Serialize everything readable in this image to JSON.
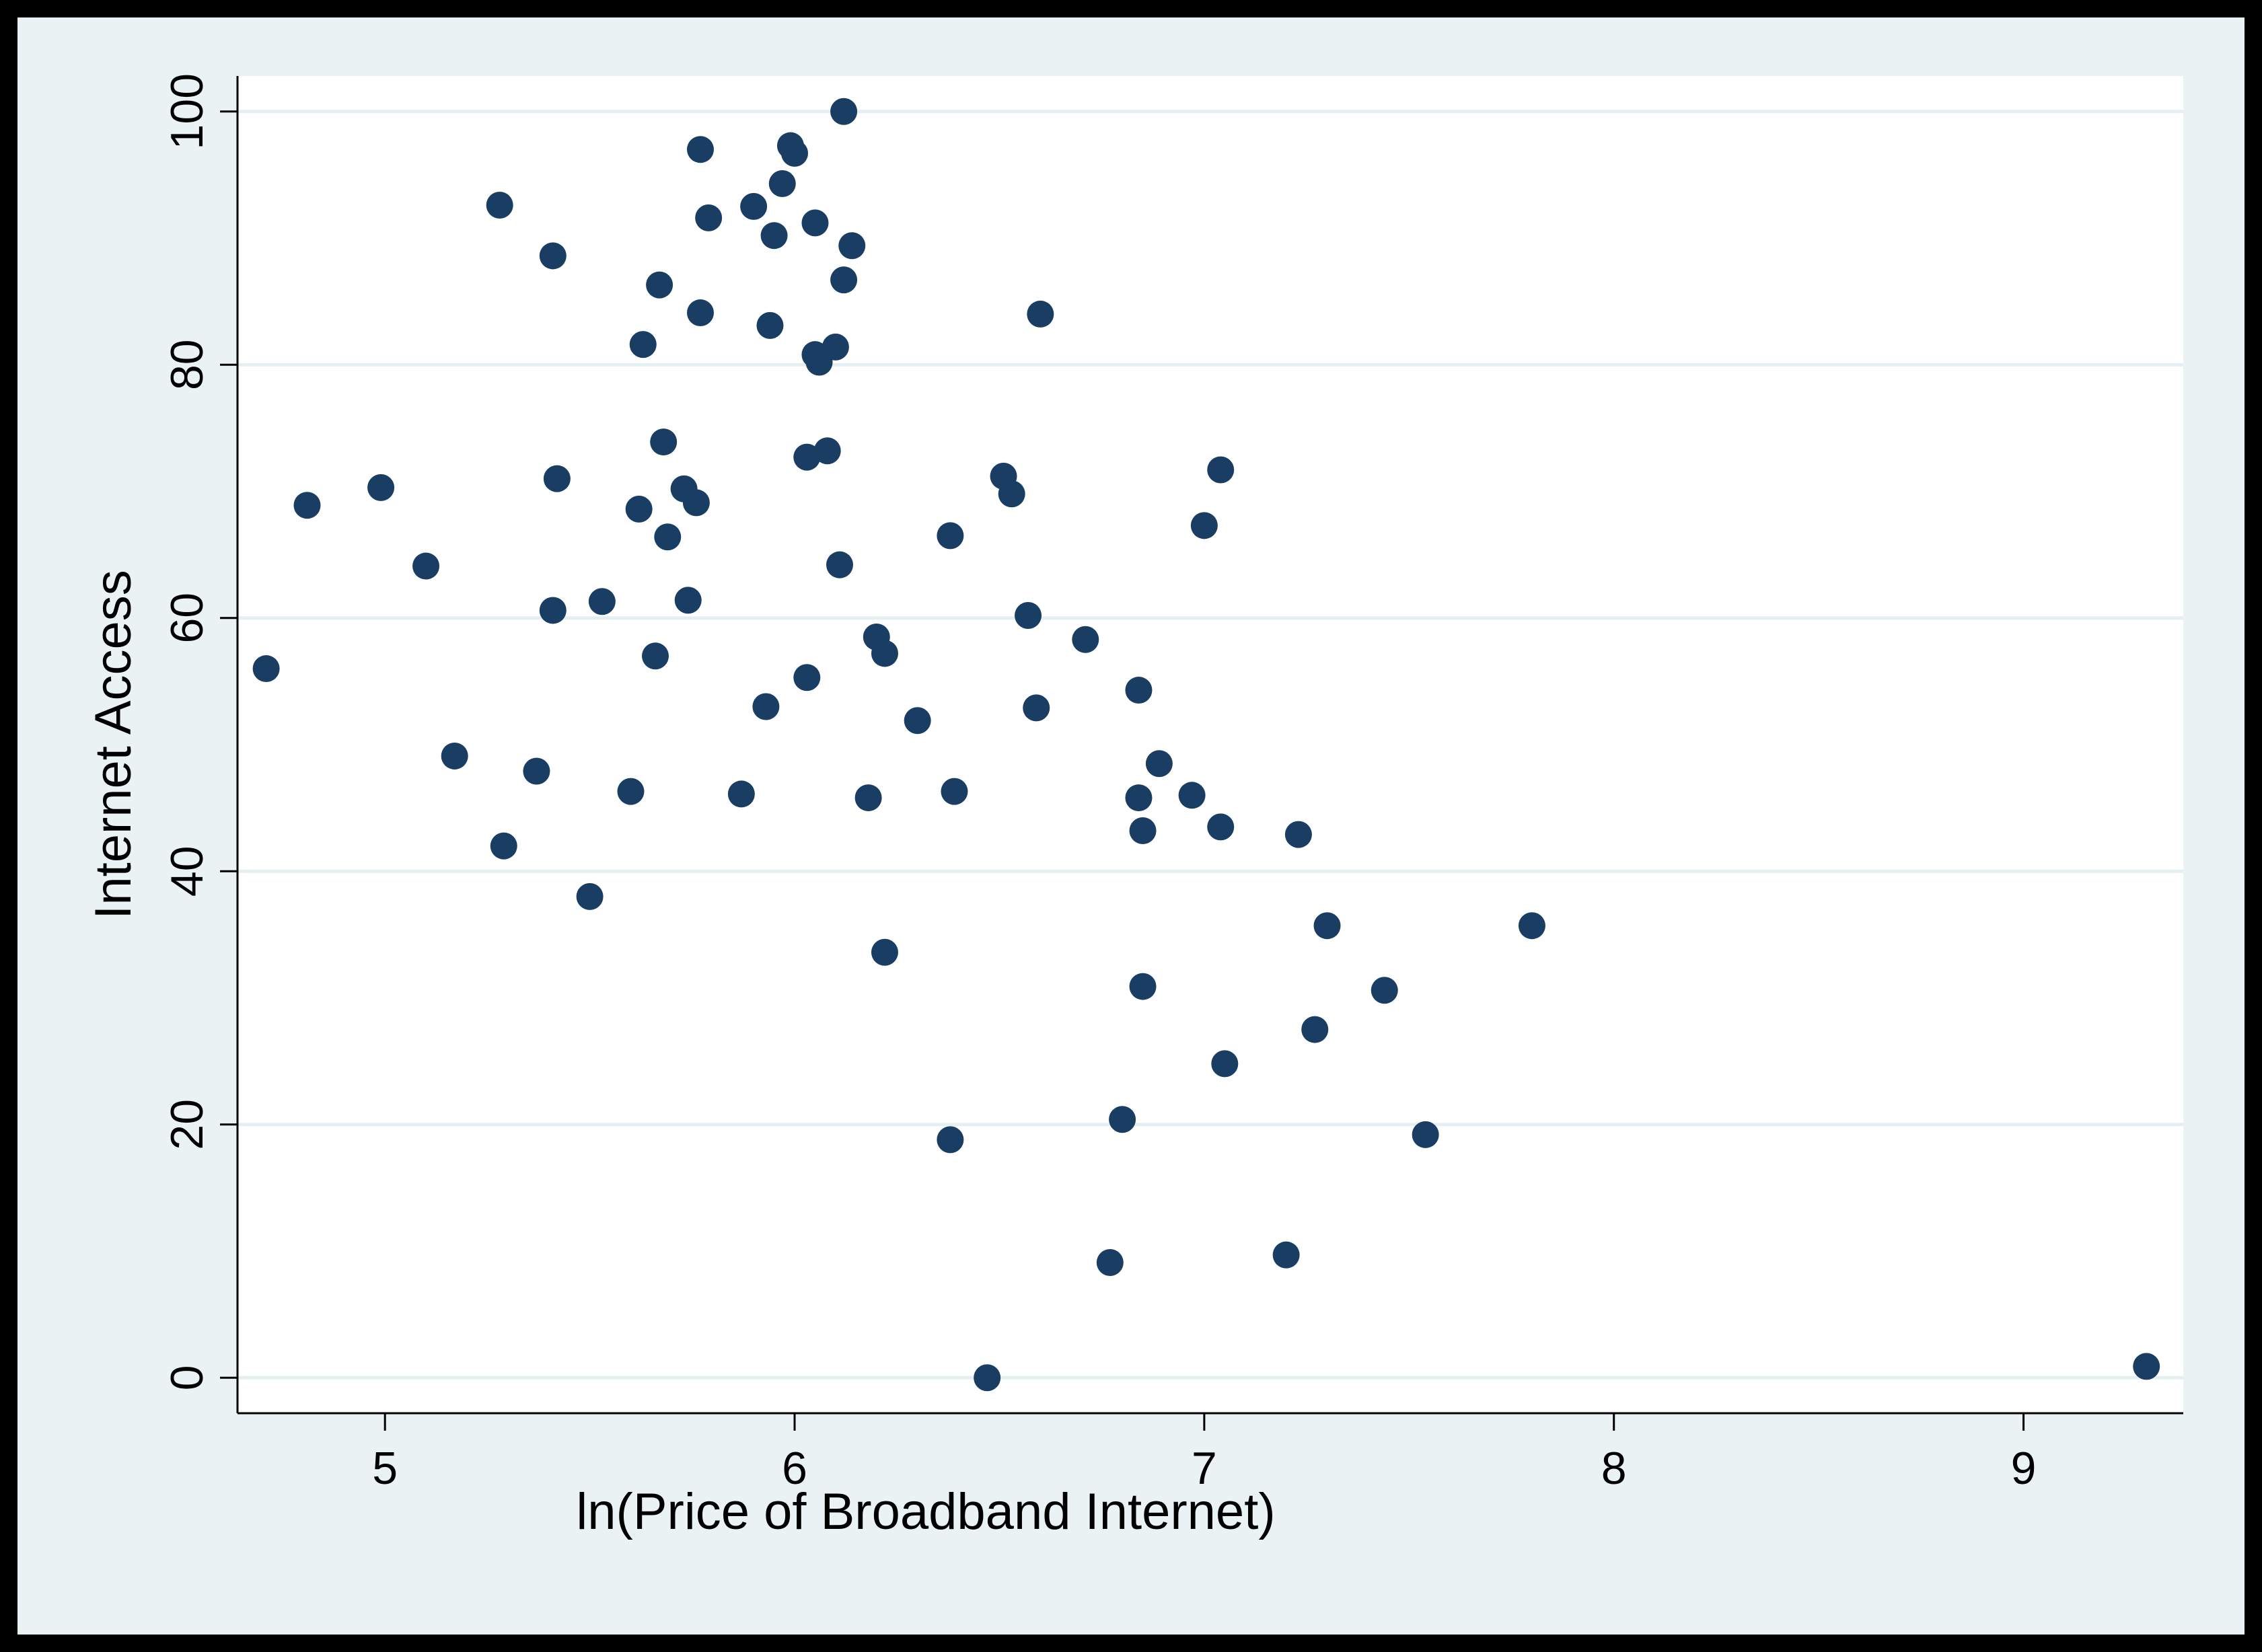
{
  "chart_data": {
    "type": "scatter",
    "title": "",
    "xlabel": "ln(Price of Broadband Internet)",
    "ylabel": "Internet Access",
    "xlim": [
      4.64,
      9.39
    ],
    "ylim": [
      -2.8,
      102.8
    ],
    "xticks": [
      5,
      6,
      7,
      8,
      9
    ],
    "yticks": [
      0,
      20,
      40,
      60,
      80,
      100
    ],
    "grid": "horizontal",
    "legend": "none",
    "colors": {
      "marker": "#1a3e63",
      "plot_bg": "#ffffff",
      "outer_bg": "#eaf2f3",
      "grid": "#e5eff1"
    },
    "points": [
      {
        "x": 4.71,
        "y": 56.0
      },
      {
        "x": 4.81,
        "y": 68.9
      },
      {
        "x": 4.99,
        "y": 70.3
      },
      {
        "x": 5.1,
        "y": 64.1
      },
      {
        "x": 5.17,
        "y": 49.1
      },
      {
        "x": 5.28,
        "y": 92.6
      },
      {
        "x": 5.29,
        "y": 42.0
      },
      {
        "x": 5.37,
        "y": 47.9
      },
      {
        "x": 5.41,
        "y": 88.6
      },
      {
        "x": 5.41,
        "y": 60.6
      },
      {
        "x": 5.42,
        "y": 71.0
      },
      {
        "x": 5.5,
        "y": 38.0
      },
      {
        "x": 5.53,
        "y": 61.3
      },
      {
        "x": 5.6,
        "y": 46.3
      },
      {
        "x": 5.62,
        "y": 68.6
      },
      {
        "x": 5.63,
        "y": 81.6
      },
      {
        "x": 5.66,
        "y": 57.0
      },
      {
        "x": 5.67,
        "y": 86.3
      },
      {
        "x": 5.68,
        "y": 73.9
      },
      {
        "x": 5.69,
        "y": 66.4
      },
      {
        "x": 5.73,
        "y": 70.2
      },
      {
        "x": 5.74,
        "y": 61.4
      },
      {
        "x": 5.76,
        "y": 69.1
      },
      {
        "x": 5.77,
        "y": 84.1
      },
      {
        "x": 5.77,
        "y": 97.0
      },
      {
        "x": 5.79,
        "y": 91.6
      },
      {
        "x": 5.87,
        "y": 46.1
      },
      {
        "x": 5.9,
        "y": 92.5
      },
      {
        "x": 5.93,
        "y": 53.0
      },
      {
        "x": 5.94,
        "y": 83.1
      },
      {
        "x": 5.95,
        "y": 90.2
      },
      {
        "x": 5.97,
        "y": 94.3
      },
      {
        "x": 5.99,
        "y": 97.3
      },
      {
        "x": 6.0,
        "y": 96.7
      },
      {
        "x": 6.03,
        "y": 55.3
      },
      {
        "x": 6.03,
        "y": 72.7
      },
      {
        "x": 6.05,
        "y": 80.8
      },
      {
        "x": 6.05,
        "y": 91.2
      },
      {
        "x": 6.06,
        "y": 80.2
      },
      {
        "x": 6.08,
        "y": 73.2
      },
      {
        "x": 6.1,
        "y": 81.4
      },
      {
        "x": 6.11,
        "y": 64.2
      },
      {
        "x": 6.12,
        "y": 100.0
      },
      {
        "x": 6.12,
        "y": 86.7
      },
      {
        "x": 6.14,
        "y": 89.4
      },
      {
        "x": 6.18,
        "y": 45.8
      },
      {
        "x": 6.2,
        "y": 58.5
      },
      {
        "x": 6.22,
        "y": 57.2
      },
      {
        "x": 6.22,
        "y": 33.6
      },
      {
        "x": 6.3,
        "y": 51.9
      },
      {
        "x": 6.38,
        "y": 66.5
      },
      {
        "x": 6.38,
        "y": 18.8
      },
      {
        "x": 6.39,
        "y": 46.3
      },
      {
        "x": 6.47,
        "y": 0.0
      },
      {
        "x": 6.51,
        "y": 71.2
      },
      {
        "x": 6.53,
        "y": 69.8
      },
      {
        "x": 6.57,
        "y": 60.2
      },
      {
        "x": 6.59,
        "y": 52.9
      },
      {
        "x": 6.6,
        "y": 84.0
      },
      {
        "x": 6.71,
        "y": 58.3
      },
      {
        "x": 6.77,
        "y": 9.1
      },
      {
        "x": 6.8,
        "y": 20.4
      },
      {
        "x": 6.84,
        "y": 54.3
      },
      {
        "x": 6.84,
        "y": 45.8
      },
      {
        "x": 6.85,
        "y": 43.2
      },
      {
        "x": 6.85,
        "y": 30.9
      },
      {
        "x": 6.89,
        "y": 48.5
      },
      {
        "x": 6.97,
        "y": 46.0
      },
      {
        "x": 7.0,
        "y": 67.3
      },
      {
        "x": 7.04,
        "y": 71.7
      },
      {
        "x": 7.04,
        "y": 43.5
      },
      {
        "x": 7.05,
        "y": 24.8
      },
      {
        "x": 7.2,
        "y": 9.7
      },
      {
        "x": 7.23,
        "y": 42.9
      },
      {
        "x": 7.27,
        "y": 27.5
      },
      {
        "x": 7.3,
        "y": 35.7
      },
      {
        "x": 7.44,
        "y": 30.6
      },
      {
        "x": 7.54,
        "y": 19.2
      },
      {
        "x": 7.8,
        "y": 35.7
      },
      {
        "x": 9.3,
        "y": 0.9
      }
    ]
  }
}
